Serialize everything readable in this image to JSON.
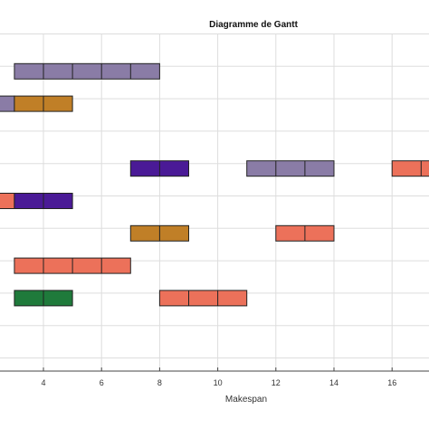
{
  "chart_data": {
    "type": "gantt",
    "title": "Diagramme de Gantt",
    "xlabel": "Makespan",
    "ylabel": "",
    "xlim": [
      0.5,
      17.3
    ],
    "x_ticks": [
      4,
      6,
      8,
      10,
      12,
      14,
      16
    ],
    "row_count": 10,
    "grid": true,
    "colors": {
      "lavender": "#8a7ca6",
      "ochre": "#c07f27",
      "indigo": "#4a1a96",
      "salmon": "#ec715a",
      "green": "#1f7a3b",
      "grid": "#dddddd",
      "axis": "#444444"
    },
    "tasks": [
      {
        "row": 1,
        "start": 3,
        "end": 8,
        "color": "lavender"
      },
      {
        "row": 2,
        "start": 0.5,
        "end": 3,
        "color": "lavender"
      },
      {
        "row": 2,
        "start": 3,
        "end": 5,
        "color": "ochre"
      },
      {
        "row": 4,
        "start": 7,
        "end": 9,
        "color": "indigo"
      },
      {
        "row": 4,
        "start": 11,
        "end": 14,
        "color": "lavender"
      },
      {
        "row": 4,
        "start": 16,
        "end": 17.3,
        "color": "salmon"
      },
      {
        "row": 5,
        "start": 0.5,
        "end": 3,
        "color": "salmon"
      },
      {
        "row": 5,
        "start": 3,
        "end": 5,
        "color": "indigo"
      },
      {
        "row": 6,
        "start": 7,
        "end": 9,
        "color": "ochre"
      },
      {
        "row": 6,
        "start": 12,
        "end": 14,
        "color": "salmon"
      },
      {
        "row": 7,
        "start": 3,
        "end": 7,
        "color": "salmon"
      },
      {
        "row": 8,
        "start": 3,
        "end": 5,
        "color": "green"
      },
      {
        "row": 8,
        "start": 8,
        "end": 11,
        "color": "salmon"
      }
    ]
  }
}
